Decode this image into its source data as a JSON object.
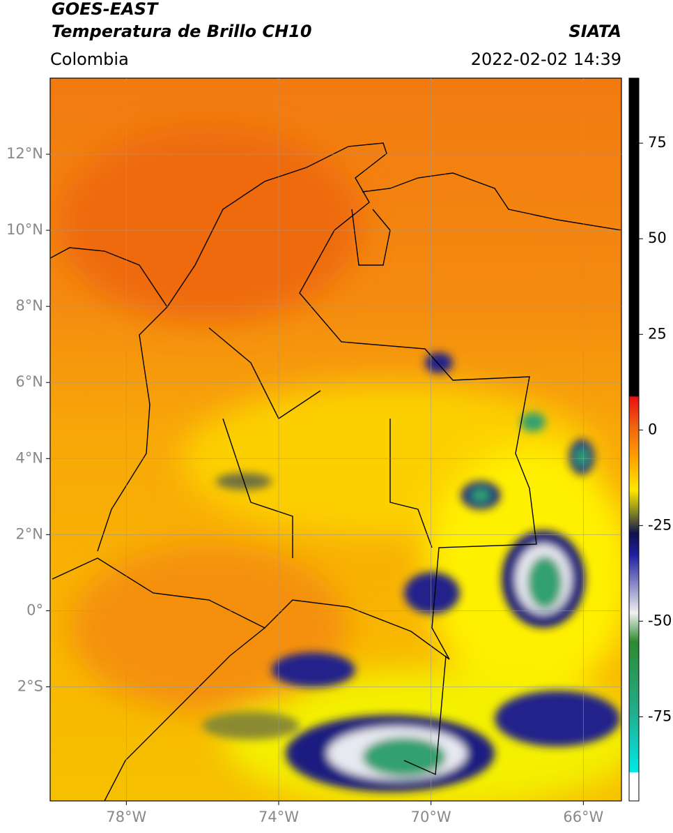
{
  "header": {
    "title_line1": "GOES-EAST",
    "title_line2": "Temperatura de Brillo CH10",
    "source": "SIATA",
    "region": "Colombia",
    "datetime": "2022-02-02 14:39"
  },
  "map": {
    "xlim": [
      -80,
      -65
    ],
    "ylim": [
      -5,
      14
    ],
    "lon_ticks": [
      {
        "value": -78,
        "label": "78°W"
      },
      {
        "value": -74,
        "label": "74°W"
      },
      {
        "value": -70,
        "label": "70°W"
      },
      {
        "value": -66,
        "label": "66°W"
      }
    ],
    "lat_ticks": [
      {
        "value": 12,
        "label": "12°N"
      },
      {
        "value": 10,
        "label": "10°N"
      },
      {
        "value": 8,
        "label": "8°N"
      },
      {
        "value": 6,
        "label": "6°N"
      },
      {
        "value": 4,
        "label": "4°N"
      },
      {
        "value": 2,
        "label": "2°N"
      },
      {
        "value": 0,
        "label": "0°"
      },
      {
        "value": -2,
        "label": "2°S"
      }
    ]
  },
  "colorbar": {
    "lim": [
      -97,
      92
    ],
    "ticks": [
      75,
      50,
      25,
      0,
      -25,
      -50,
      -75
    ]
  }
}
